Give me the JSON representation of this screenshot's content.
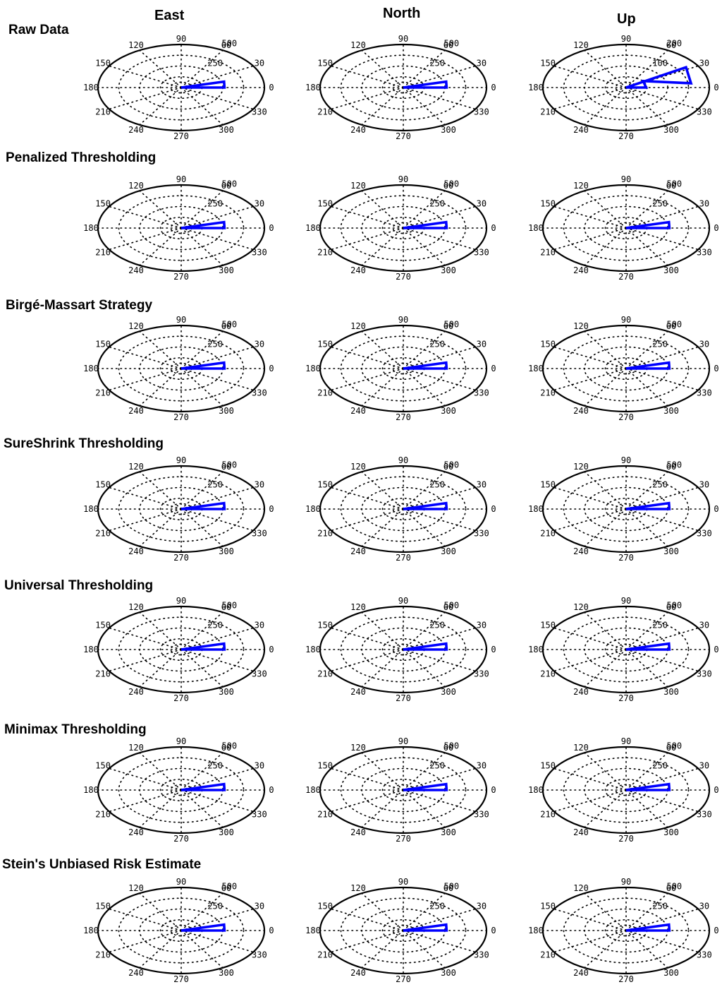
{
  "column_titles": [
    "East",
    "North",
    "Up"
  ],
  "row_titles": [
    "Raw Data",
    "Penalized Thresholding",
    "Birgé-Massart Strategy",
    "SureShrink Thresholding",
    "Universal Thresholding",
    "Minimax Thresholding",
    "Stein's Unbiased Risk Estimate"
  ],
  "colors": {
    "series": "#0000ff",
    "frame": "#000000",
    "grid": "#000000"
  },
  "chart_data": {
    "type": "polar",
    "grid": true,
    "theta_ticks": [
      "0",
      "30",
      "60",
      "90",
      "120",
      "150",
      "180",
      "210",
      "240",
      "270",
      "300",
      "330"
    ],
    "radial_ticks_default": [
      "250",
      "500"
    ],
    "panels": [
      {
        "row": "Raw Data",
        "column": "East",
        "rmax": 500,
        "radial_ticks": [
          "250",
          "500"
        ],
        "series": [
          {
            "theta": [
              0,
              8,
              8,
              0
            ],
            "r": [
              0,
              500,
              500,
              0
            ],
            "closed": true
          },
          {
            "theta": [
              0
            ],
            "r": [
              500
            ]
          }
        ],
        "wedge": {
          "theta_start": 0,
          "theta_end": 8,
          "r": 500
        }
      },
      {
        "row": "Raw Data",
        "column": "North",
        "rmax": 500,
        "radial_ticks": [
          "250",
          "500"
        ],
        "wedge": {
          "theta_start": 0,
          "theta_end": 8,
          "r": 500
        }
      },
      {
        "row": "Raw Data",
        "column": "Up",
        "rmax": 200,
        "radial_ticks": [
          "100",
          "200"
        ],
        "wedge": {
          "theta_start": 0,
          "theta_end": 28,
          "r": 200,
          "inner_r": 100,
          "inner_theta": 8
        }
      },
      {
        "row": "Penalized Thresholding",
        "column": "East",
        "rmax": 500,
        "radial_ticks": [
          "250",
          "500"
        ],
        "wedge": {
          "theta_start": 0,
          "theta_end": 8,
          "r": 500
        }
      },
      {
        "row": "Penalized Thresholding",
        "column": "North",
        "rmax": 500,
        "radial_ticks": [
          "250",
          "500"
        ],
        "wedge": {
          "theta_start": 0,
          "theta_end": 8,
          "r": 500
        }
      },
      {
        "row": "Penalized Thresholding",
        "column": "Up",
        "rmax": 500,
        "radial_ticks": [
          "250",
          "500"
        ],
        "wedge": {
          "theta_start": 0,
          "theta_end": 8,
          "r": 500
        }
      },
      {
        "row": "Birgé-Massart Strategy",
        "column": "East",
        "rmax": 500,
        "radial_ticks": [
          "250",
          "500"
        ],
        "wedge": {
          "theta_start": 0,
          "theta_end": 8,
          "r": 500
        }
      },
      {
        "row": "Birgé-Massart Strategy",
        "column": "North",
        "rmax": 500,
        "radial_ticks": [
          "250",
          "500"
        ],
        "wedge": {
          "theta_start": 0,
          "theta_end": 8,
          "r": 500
        }
      },
      {
        "row": "Birgé-Massart Strategy",
        "column": "Up",
        "rmax": 500,
        "radial_ticks": [
          "250",
          "500"
        ],
        "wedge": {
          "theta_start": 0,
          "theta_end": 8,
          "r": 500
        }
      },
      {
        "row": "SureShrink Thresholding",
        "column": "East",
        "rmax": 500,
        "radial_ticks": [
          "250",
          "500"
        ],
        "wedge": {
          "theta_start": 0,
          "theta_end": 8,
          "r": 500
        }
      },
      {
        "row": "SureShrink Thresholding",
        "column": "North",
        "rmax": 500,
        "radial_ticks": [
          "250",
          "500"
        ],
        "wedge": {
          "theta_start": 0,
          "theta_end": 8,
          "r": 500
        }
      },
      {
        "row": "SureShrink Thresholding",
        "column": "Up",
        "rmax": 500,
        "radial_ticks": [
          "250",
          "500"
        ],
        "wedge": {
          "theta_start": 0,
          "theta_end": 8,
          "r": 500
        }
      },
      {
        "row": "Universal Thresholding",
        "column": "East",
        "rmax": 500,
        "radial_ticks": [
          "250",
          "500"
        ],
        "wedge": {
          "theta_start": 0,
          "theta_end": 8,
          "r": 500
        }
      },
      {
        "row": "Universal Thresholding",
        "column": "North",
        "rmax": 500,
        "radial_ticks": [
          "250",
          "500"
        ],
        "wedge": {
          "theta_start": 0,
          "theta_end": 8,
          "r": 500
        }
      },
      {
        "row": "Universal Thresholding",
        "column": "Up",
        "rmax": 500,
        "radial_ticks": [
          "250",
          "500"
        ],
        "wedge": {
          "theta_start": 0,
          "theta_end": 8,
          "r": 500
        }
      },
      {
        "row": "Minimax Thresholding",
        "column": "East",
        "rmax": 500,
        "radial_ticks": [
          "250",
          "500"
        ],
        "wedge": {
          "theta_start": 0,
          "theta_end": 8,
          "r": 500
        }
      },
      {
        "row": "Minimax Thresholding",
        "column": "North",
        "rmax": 500,
        "radial_ticks": [
          "250",
          "500"
        ],
        "wedge": {
          "theta_start": 0,
          "theta_end": 8,
          "r": 500
        }
      },
      {
        "row": "Minimax Thresholding",
        "column": "Up",
        "rmax": 500,
        "radial_ticks": [
          "250",
          "500"
        ],
        "wedge": {
          "theta_start": 0,
          "theta_end": 8,
          "r": 500
        }
      },
      {
        "row": "Stein's Unbiased Risk Estimate",
        "column": "East",
        "rmax": 500,
        "radial_ticks": [
          "250",
          "500"
        ],
        "wedge": {
          "theta_start": 0,
          "theta_end": 8,
          "r": 500
        }
      },
      {
        "row": "Stein's Unbiased Risk Estimate",
        "column": "North",
        "rmax": 500,
        "radial_ticks": [
          "250",
          "500"
        ],
        "wedge": {
          "theta_start": 0,
          "theta_end": 8,
          "r": 500
        }
      },
      {
        "row": "Stein's Unbiased Risk Estimate",
        "column": "Up",
        "rmax": 500,
        "radial_ticks": [
          "250",
          "500"
        ],
        "wedge": {
          "theta_start": 0,
          "theta_end": 8,
          "r": 500
        }
      }
    ]
  }
}
